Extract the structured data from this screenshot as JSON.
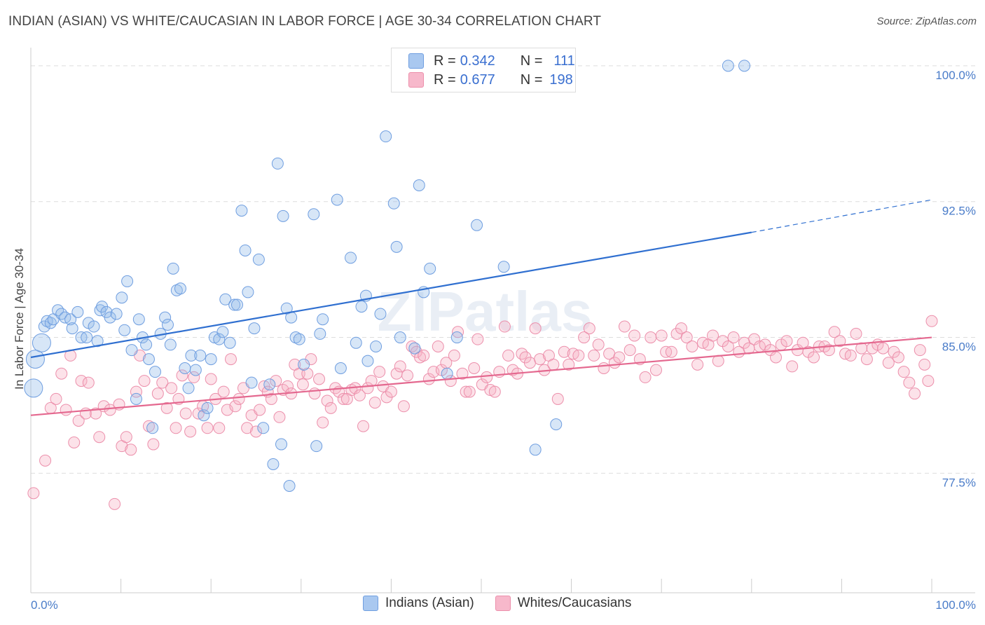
{
  "title": "INDIAN (ASIAN) VS WHITE/CAUCASIAN IN LABOR FORCE | AGE 30-34 CORRELATION CHART",
  "source": "Source: ZipAtlas.com",
  "watermark": "ZIPatlas",
  "legend": {
    "r_label": "R =",
    "n_label": "N =",
    "rows": [
      {
        "r": "0.342",
        "n": "111",
        "color": "#a9c8f0",
        "border": "#6f9ee0"
      },
      {
        "r": "0.677",
        "n": "198",
        "color": "#f7b8cb",
        "border": "#ec8fab"
      }
    ]
  },
  "bottom_legend": [
    "Indians (Asian)",
    "Whites/Caucasians"
  ],
  "colors": {
    "blue_fill": "rgba(150,188,235,0.38)",
    "blue_stroke": "#6f9ee0",
    "blue_line": "#2f6fd0",
    "pink_fill": "rgba(246,178,198,0.38)",
    "pink_stroke": "#ec8fab",
    "pink_line": "#e4688f",
    "grid": "#dddddd",
    "tick_text": "#4a7cc9"
  },
  "chart_data": {
    "type": "scatter",
    "title": "INDIAN (ASIAN) VS WHITE/CAUCASIAN IN LABOR FORCE | AGE 30-34 CORRELATION CHART",
    "xlabel": "",
    "ylabel": "In Labor Force | Age 30-34",
    "xlim": [
      0,
      100
    ],
    "ylim": [
      70.9,
      101.0
    ],
    "x_tick_labels": [
      "0.0%",
      "100.0%"
    ],
    "y_ticks": [
      77.5,
      85.0,
      92.5,
      100.0
    ],
    "y_tick_labels": [
      "77.5%",
      "85.0%",
      "92.5%",
      "100.0%"
    ],
    "grid": true,
    "legend_position": "top-center",
    "series": [
      {
        "name": "Indians (Asian)",
        "r": 0.342,
        "n": 111,
        "trend": {
          "x0": 0,
          "y0": 83.9,
          "x1": 80,
          "y1": 90.8,
          "dashed_to_x": 100,
          "dashed_to_y": 92.6
        },
        "points": [
          [
            0.5,
            83.8
          ],
          [
            0.3,
            82.2
          ],
          [
            1.2,
            84.7
          ],
          [
            1.5,
            85.6
          ],
          [
            1.8,
            85.9
          ],
          [
            2.2,
            85.8
          ],
          [
            2.5,
            86.0
          ],
          [
            3.0,
            86.5
          ],
          [
            3.4,
            86.3
          ],
          [
            3.8,
            86.1
          ],
          [
            4.4,
            86.0
          ],
          [
            4.6,
            85.5
          ],
          [
            5.2,
            86.4
          ],
          [
            5.6,
            85.0
          ],
          [
            6.2,
            85.0
          ],
          [
            6.4,
            85.8
          ],
          [
            7.0,
            85.6
          ],
          [
            7.4,
            84.8
          ],
          [
            7.7,
            86.5
          ],
          [
            7.9,
            86.7
          ],
          [
            8.4,
            86.4
          ],
          [
            8.8,
            86.1
          ],
          [
            9.5,
            86.3
          ],
          [
            10.1,
            87.2
          ],
          [
            10.4,
            85.4
          ],
          [
            10.7,
            88.1
          ],
          [
            11.2,
            84.3
          ],
          [
            11.7,
            81.6
          ],
          [
            12.0,
            86.0
          ],
          [
            12.4,
            85.0
          ],
          [
            12.8,
            84.6
          ],
          [
            13.1,
            83.8
          ],
          [
            13.5,
            80.0
          ],
          [
            13.8,
            83.1
          ],
          [
            14.4,
            85.2
          ],
          [
            14.9,
            86.1
          ],
          [
            15.2,
            85.7
          ],
          [
            15.5,
            84.6
          ],
          [
            15.8,
            88.8
          ],
          [
            16.2,
            87.6
          ],
          [
            16.6,
            87.7
          ],
          [
            17.1,
            83.3
          ],
          [
            17.5,
            82.2
          ],
          [
            17.8,
            84.0
          ],
          [
            18.3,
            83.2
          ],
          [
            18.8,
            84.0
          ],
          [
            19.2,
            80.7
          ],
          [
            19.6,
            81.1
          ],
          [
            20.0,
            83.8
          ],
          [
            20.4,
            85.0
          ],
          [
            20.9,
            84.9
          ],
          [
            21.3,
            85.3
          ],
          [
            21.6,
            87.1
          ],
          [
            22.1,
            84.7
          ],
          [
            22.6,
            86.8
          ],
          [
            22.9,
            86.8
          ],
          [
            23.4,
            92.0
          ],
          [
            23.8,
            89.8
          ],
          [
            24.1,
            87.5
          ],
          [
            24.5,
            82.5
          ],
          [
            24.8,
            85.5
          ],
          [
            25.3,
            89.3
          ],
          [
            25.8,
            80.0
          ],
          [
            26.5,
            82.4
          ],
          [
            26.9,
            78.0
          ],
          [
            27.4,
            94.6
          ],
          [
            27.8,
            79.1
          ],
          [
            28.0,
            91.7
          ],
          [
            28.4,
            86.6
          ],
          [
            28.7,
            76.8
          ],
          [
            28.9,
            86.1
          ],
          [
            29.4,
            85.0
          ],
          [
            29.8,
            84.9
          ],
          [
            30.3,
            83.5
          ],
          [
            31.4,
            91.8
          ],
          [
            31.7,
            79.0
          ],
          [
            32.1,
            85.2
          ],
          [
            32.4,
            86.0
          ],
          [
            34.0,
            92.6
          ],
          [
            34.4,
            83.3
          ],
          [
            35.5,
            89.4
          ],
          [
            36.1,
            84.7
          ],
          [
            36.7,
            86.7
          ],
          [
            37.2,
            87.3
          ],
          [
            37.4,
            83.7
          ],
          [
            38.3,
            84.5
          ],
          [
            38.8,
            86.3
          ],
          [
            39.4,
            96.1
          ],
          [
            40.3,
            92.4
          ],
          [
            40.6,
            90.0
          ],
          [
            41.0,
            85.0
          ],
          [
            42.6,
            84.4
          ],
          [
            43.1,
            93.4
          ],
          [
            43.6,
            87.5
          ],
          [
            44.3,
            88.8
          ],
          [
            46.2,
            83.0
          ],
          [
            47.3,
            85.0
          ],
          [
            49.5,
            91.2
          ],
          [
            52.5,
            88.9
          ],
          [
            56.0,
            78.8
          ],
          [
            58.3,
            80.2
          ],
          [
            77.4,
            100.0
          ],
          [
            79.2,
            100.0
          ]
        ]
      },
      {
        "name": "Whites/Caucasians",
        "r": 0.677,
        "n": 198,
        "trend": {
          "x0": 0,
          "y0": 80.7,
          "x1": 100,
          "y1": 85.0
        },
        "points": [
          [
            0.3,
            76.4
          ],
          [
            1.6,
            78.2
          ],
          [
            2.2,
            81.1
          ],
          [
            2.8,
            81.6
          ],
          [
            3.4,
            83.0
          ],
          [
            3.9,
            81.0
          ],
          [
            4.4,
            84.0
          ],
          [
            4.8,
            79.2
          ],
          [
            5.3,
            80.4
          ],
          [
            5.6,
            82.6
          ],
          [
            6.1,
            80.8
          ],
          [
            6.4,
            82.5
          ],
          [
            7.2,
            80.8
          ],
          [
            7.6,
            79.5
          ],
          [
            8.1,
            81.2
          ],
          [
            8.8,
            81.0
          ],
          [
            9.3,
            75.8
          ],
          [
            9.8,
            81.3
          ],
          [
            10.1,
            79.0
          ],
          [
            10.6,
            79.5
          ],
          [
            11.1,
            78.8
          ],
          [
            11.7,
            82.0
          ],
          [
            12.1,
            84.0
          ],
          [
            12.6,
            82.6
          ],
          [
            13.1,
            80.1
          ],
          [
            13.6,
            79.1
          ],
          [
            14.1,
            81.9
          ],
          [
            14.6,
            82.5
          ],
          [
            15.1,
            81.1
          ],
          [
            15.6,
            82.2
          ],
          [
            16.1,
            80.0
          ],
          [
            16.4,
            81.6
          ],
          [
            16.8,
            82.9
          ],
          [
            17.2,
            80.8
          ],
          [
            17.7,
            79.8
          ],
          [
            18.1,
            82.8
          ],
          [
            18.6,
            80.8
          ],
          [
            19.1,
            81.2
          ],
          [
            19.6,
            80.0
          ],
          [
            20.0,
            82.7
          ],
          [
            20.5,
            81.6
          ],
          [
            20.9,
            80.0
          ],
          [
            21.4,
            82.0
          ],
          [
            21.8,
            81.0
          ],
          [
            22.2,
            83.8
          ],
          [
            22.7,
            81.2
          ],
          [
            23.1,
            81.6
          ],
          [
            23.6,
            82.2
          ],
          [
            24.0,
            80.0
          ],
          [
            24.5,
            80.7
          ],
          [
            25.0,
            79.8
          ],
          [
            25.4,
            81.0
          ],
          [
            25.9,
            82.3
          ],
          [
            26.3,
            82.0
          ],
          [
            26.7,
            81.6
          ],
          [
            27.2,
            82.6
          ],
          [
            27.6,
            80.6
          ],
          [
            28.0,
            82.1
          ],
          [
            28.5,
            82.3
          ],
          [
            28.9,
            81.9
          ],
          [
            29.3,
            83.5
          ],
          [
            29.8,
            83.0
          ],
          [
            30.2,
            82.4
          ],
          [
            30.7,
            83.0
          ],
          [
            31.1,
            83.8
          ],
          [
            31.5,
            81.9
          ],
          [
            32.0,
            82.7
          ],
          [
            32.4,
            80.3
          ],
          [
            32.9,
            81.5
          ],
          [
            33.3,
            81.1
          ],
          [
            33.8,
            82.2
          ],
          [
            34.2,
            82.0
          ],
          [
            34.7,
            81.6
          ],
          [
            35.1,
            81.6
          ],
          [
            35.6,
            82.1
          ],
          [
            36.0,
            82.2
          ],
          [
            36.5,
            81.8
          ],
          [
            36.9,
            80.1
          ],
          [
            37.4,
            82.2
          ],
          [
            37.8,
            82.6
          ],
          [
            38.2,
            81.4
          ],
          [
            38.7,
            83.1
          ],
          [
            39.1,
            82.3
          ],
          [
            39.5,
            81.7
          ],
          [
            40.0,
            82.0
          ],
          [
            40.6,
            83.0
          ],
          [
            41.0,
            83.4
          ],
          [
            41.4,
            81.2
          ],
          [
            41.8,
            82.9
          ],
          [
            42.3,
            84.5
          ],
          [
            42.8,
            84.2
          ],
          [
            43.2,
            83.9
          ],
          [
            43.6,
            84.0
          ],
          [
            44.2,
            82.7
          ],
          [
            44.7,
            83.1
          ],
          [
            45.2,
            84.5
          ],
          [
            45.6,
            83.2
          ],
          [
            46.1,
            83.6
          ],
          [
            46.6,
            82.6
          ],
          [
            47.0,
            84.0
          ],
          [
            47.4,
            85.3
          ],
          [
            47.9,
            83.0
          ],
          [
            48.3,
            82.0
          ],
          [
            48.7,
            82.0
          ],
          [
            49.2,
            83.3
          ],
          [
            49.6,
            84.9
          ],
          [
            50.1,
            82.4
          ],
          [
            50.6,
            82.8
          ],
          [
            51.0,
            82.1
          ],
          [
            51.5,
            82.0
          ],
          [
            52.0,
            83.1
          ],
          [
            52.6,
            85.6
          ],
          [
            53.0,
            84.0
          ],
          [
            53.5,
            83.2
          ],
          [
            54.0,
            83.0
          ],
          [
            54.5,
            84.1
          ],
          [
            54.9,
            83.9
          ],
          [
            55.4,
            83.6
          ],
          [
            56.0,
            85.5
          ],
          [
            56.5,
            83.8
          ],
          [
            57.0,
            83.2
          ],
          [
            57.5,
            84.0
          ],
          [
            58.0,
            83.5
          ],
          [
            58.5,
            81.6
          ],
          [
            59.2,
            84.2
          ],
          [
            59.7,
            83.5
          ],
          [
            60.2,
            84.1
          ],
          [
            60.8,
            84.0
          ],
          [
            61.4,
            85.0
          ],
          [
            62.0,
            85.5
          ],
          [
            62.5,
            84.0
          ],
          [
            63.0,
            84.6
          ],
          [
            63.6,
            83.3
          ],
          [
            64.2,
            84.1
          ],
          [
            64.8,
            83.6
          ],
          [
            65.3,
            83.9
          ],
          [
            65.9,
            85.6
          ],
          [
            66.5,
            84.3
          ],
          [
            67.0,
            85.1
          ],
          [
            67.6,
            83.8
          ],
          [
            68.2,
            82.8
          ],
          [
            68.8,
            85.0
          ],
          [
            69.4,
            83.2
          ],
          [
            70.0,
            85.1
          ],
          [
            70.5,
            84.2
          ],
          [
            71.1,
            84.2
          ],
          [
            71.7,
            85.2
          ],
          [
            72.2,
            85.5
          ],
          [
            72.8,
            85.0
          ],
          [
            73.4,
            84.5
          ],
          [
            74.0,
            83.5
          ],
          [
            74.6,
            84.7
          ],
          [
            75.2,
            84.6
          ],
          [
            75.7,
            85.1
          ],
          [
            76.3,
            83.7
          ],
          [
            76.8,
            84.8
          ],
          [
            77.4,
            84.5
          ],
          [
            78.0,
            85.0
          ],
          [
            78.6,
            84.2
          ],
          [
            79.2,
            84.7
          ],
          [
            79.7,
            84.4
          ],
          [
            80.3,
            84.9
          ],
          [
            80.9,
            84.5
          ],
          [
            81.5,
            84.6
          ],
          [
            82.1,
            84.3
          ],
          [
            82.7,
            83.9
          ],
          [
            83.3,
            84.6
          ],
          [
            83.9,
            84.8
          ],
          [
            84.5,
            83.4
          ],
          [
            85.1,
            84.3
          ],
          [
            85.7,
            84.7
          ],
          [
            86.3,
            84.2
          ],
          [
            86.9,
            83.9
          ],
          [
            87.5,
            84.5
          ],
          [
            88.1,
            84.5
          ],
          [
            88.6,
            84.3
          ],
          [
            89.2,
            85.3
          ],
          [
            89.8,
            84.8
          ],
          [
            90.4,
            84.1
          ],
          [
            91.0,
            84.0
          ],
          [
            91.6,
            85.2
          ],
          [
            92.2,
            84.4
          ],
          [
            92.8,
            83.8
          ],
          [
            93.4,
            84.4
          ],
          [
            94.0,
            84.6
          ],
          [
            94.6,
            84.4
          ],
          [
            95.2,
            83.6
          ],
          [
            95.8,
            84.2
          ],
          [
            96.3,
            83.9
          ],
          [
            96.9,
            83.1
          ],
          [
            97.5,
            82.5
          ],
          [
            98.1,
            81.9
          ],
          [
            98.7,
            84.3
          ],
          [
            99.2,
            83.5
          ],
          [
            99.6,
            82.6
          ],
          [
            100.0,
            85.9
          ]
        ]
      }
    ]
  }
}
